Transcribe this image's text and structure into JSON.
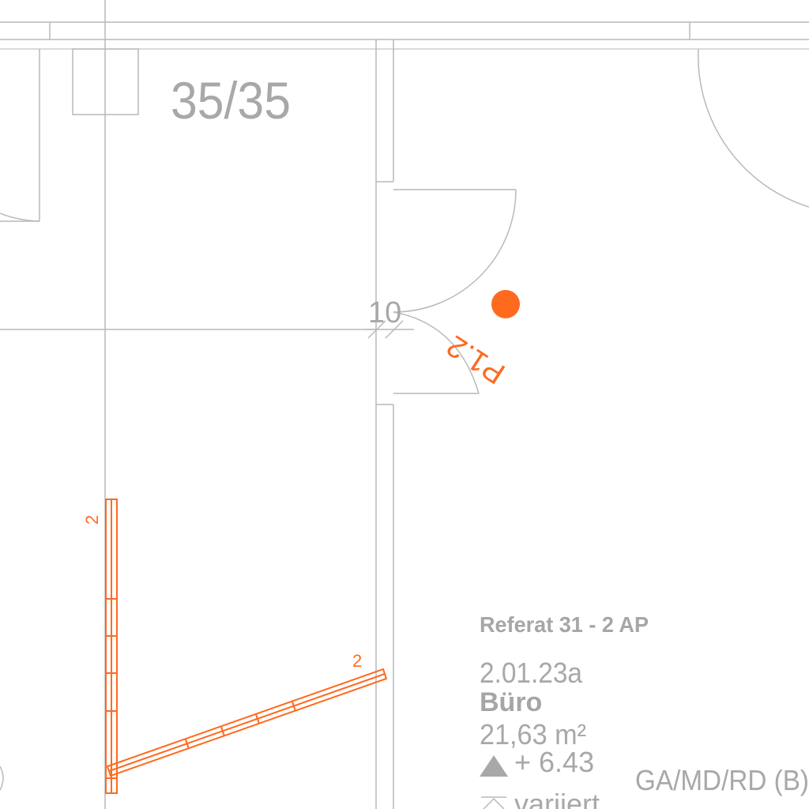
{
  "column_label": "35/35",
  "door_dimension": "10",
  "pin_label": "P1.2",
  "wall_labels": [
    "2",
    "2"
  ],
  "room": {
    "department": "Referat 31 -  2 AP",
    "number": "2.01.23a",
    "name": "Büro",
    "area": "21,63 m²",
    "floor_level": "+ 6.43",
    "ceiling_level": "variiert"
  },
  "adjacent_label": "GA/MD/RD (B)",
  "colors": {
    "lines": "#b9b9b9",
    "accent": "#ff6a1f",
    "text": "#a8a8a8"
  }
}
